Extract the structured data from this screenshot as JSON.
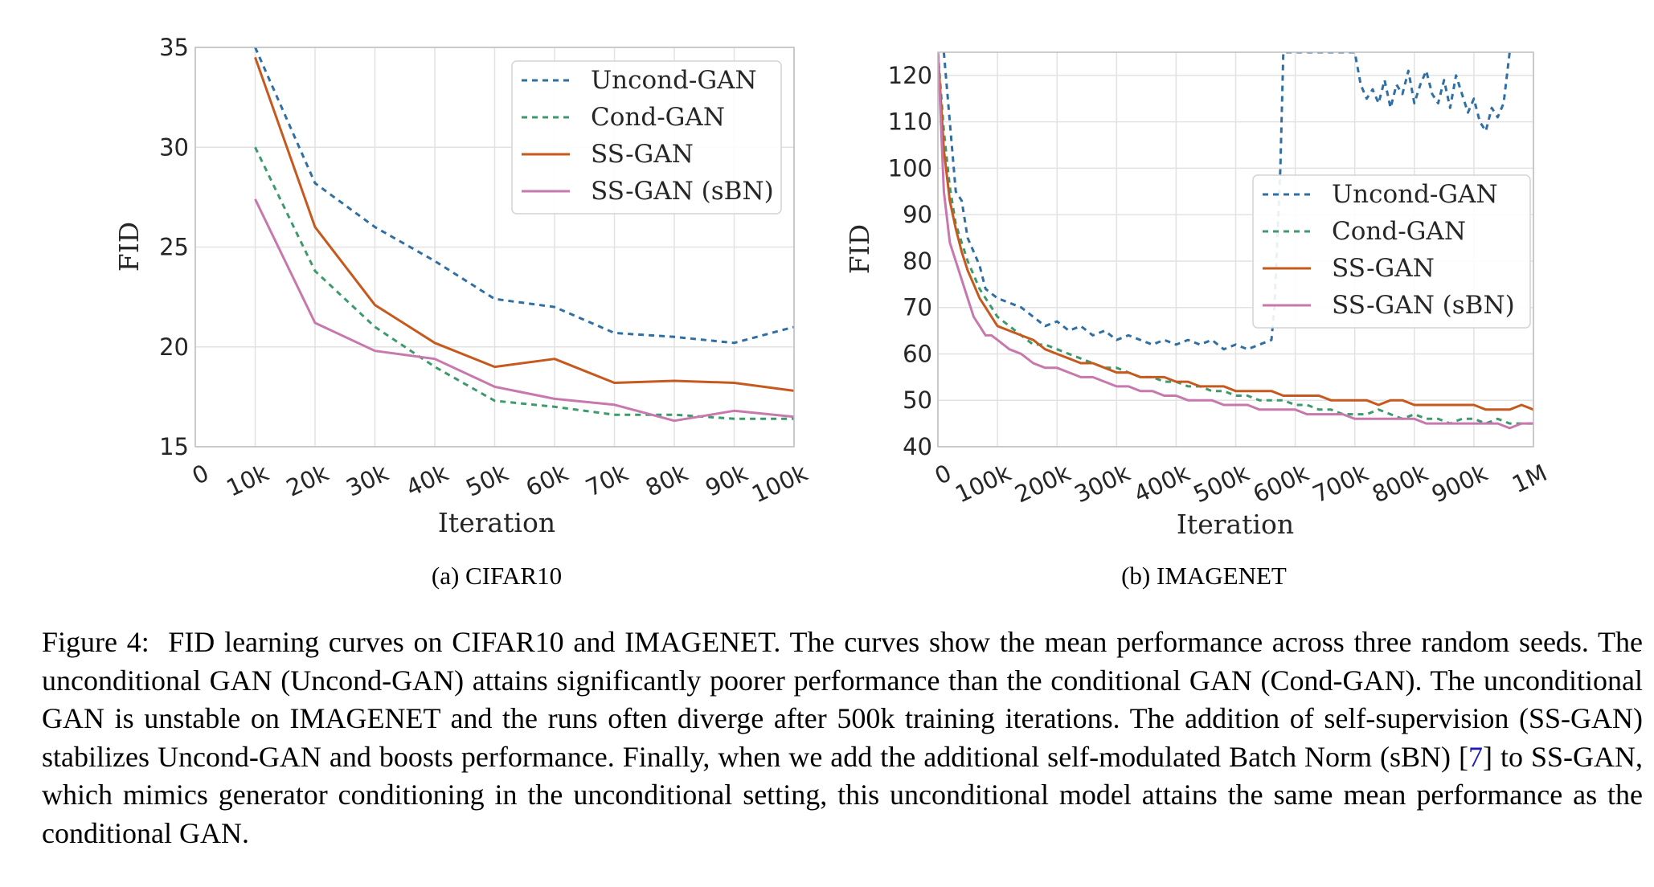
{
  "colors": {
    "uncond": "#2f6fa3",
    "cond": "#3d9a6c",
    "ssgan": "#c65a1e",
    "ssgan_sbn": "#c778ad",
    "grid": "#e2e2e2",
    "frame": "#bdbdbd"
  },
  "chart_data": [
    {
      "type": "line",
      "subcaption": "(a) CIFAR10",
      "xlabel": "Iteration",
      "ylabel": "FID",
      "xlim": [
        0,
        100000
      ],
      "ylim": [
        15,
        35
      ],
      "x_ticks": [
        0,
        10000,
        20000,
        30000,
        40000,
        50000,
        60000,
        70000,
        80000,
        90000,
        100000
      ],
      "x_tick_labels": [
        "0",
        "10k",
        "20k",
        "30k",
        "40k",
        "50k",
        "60k",
        "70k",
        "80k",
        "90k",
        "100k"
      ],
      "y_ticks": [
        15,
        20,
        25,
        30,
        35
      ],
      "y_tick_labels": [
        "15",
        "20",
        "25",
        "30",
        "35"
      ],
      "grid": true,
      "legend_position": "top-right",
      "x": [
        10000,
        20000,
        30000,
        40000,
        50000,
        60000,
        70000,
        80000,
        90000,
        100000
      ],
      "series": [
        {
          "name": "Uncond-GAN",
          "style": "dashed",
          "color_key": "uncond",
          "values": [
            35.0,
            28.2,
            26.0,
            24.3,
            22.4,
            22.0,
            20.7,
            20.5,
            20.2,
            21.0
          ]
        },
        {
          "name": "Cond-GAN",
          "style": "dashed",
          "color_key": "cond",
          "values": [
            30.0,
            23.8,
            21.0,
            19.0,
            17.3,
            17.0,
            16.6,
            16.6,
            16.4,
            16.4
          ]
        },
        {
          "name": "SS-GAN",
          "style": "solid",
          "color_key": "ssgan",
          "values": [
            34.5,
            26.0,
            22.1,
            20.2,
            19.0,
            19.4,
            18.2,
            18.3,
            18.2,
            17.8
          ]
        },
        {
          "name": "SS-GAN (sBN)",
          "style": "solid",
          "color_key": "ssgan_sbn",
          "values": [
            27.4,
            21.2,
            19.8,
            19.4,
            18.0,
            17.4,
            17.1,
            16.3,
            16.8,
            16.5
          ]
        }
      ]
    },
    {
      "type": "line",
      "subcaption": "(b) IMAGENET",
      "xlabel": "Iteration",
      "ylabel": "FID",
      "xlim": [
        0,
        1000000
      ],
      "ylim": [
        40,
        125
      ],
      "x_ticks": [
        0,
        100000,
        200000,
        300000,
        400000,
        500000,
        600000,
        700000,
        800000,
        900000,
        1000000
      ],
      "x_tick_labels": [
        "0",
        "100k",
        "200k",
        "300k",
        "400k",
        "500k",
        "600k",
        "700k",
        "800k",
        "900k",
        "1M"
      ],
      "y_ticks": [
        40,
        50,
        60,
        70,
        80,
        90,
        100,
        110,
        120
      ],
      "y_tick_labels": [
        "40",
        "50",
        "60",
        "70",
        "80",
        "90",
        "100",
        "110",
        "120"
      ],
      "grid": true,
      "legend_position": "center-right",
      "series": [
        {
          "name": "Uncond-GAN",
          "style": "dashed",
          "color_key": "uncond",
          "x": [
            10000,
            20000,
            30000,
            40000,
            50000,
            60000,
            70000,
            80000,
            90000,
            100000,
            120000,
            140000,
            160000,
            180000,
            200000,
            220000,
            240000,
            260000,
            280000,
            300000,
            320000,
            340000,
            360000,
            380000,
            400000,
            420000,
            440000,
            460000,
            480000,
            500000,
            520000,
            540000,
            560000,
            565000,
            570000,
            575000,
            580000,
            700000,
            710000,
            720000,
            730000,
            740000,
            750000,
            760000,
            770000,
            780000,
            790000,
            800000,
            810000,
            820000,
            830000,
            840000,
            850000,
            860000,
            870000,
            880000,
            890000,
            900000,
            910000,
            920000,
            930000,
            940000,
            950000,
            960000
          ],
          "values": [
            125,
            110,
            95,
            93,
            85,
            82,
            79,
            74,
            73,
            72,
            71,
            70,
            68,
            66,
            67,
            65,
            66,
            64,
            65,
            63,
            64,
            63,
            62,
            63,
            62,
            63,
            62,
            63,
            61,
            62,
            61,
            62,
            63,
            70,
            85,
            100,
            125,
            125,
            118,
            115,
            117,
            114,
            119,
            113,
            118,
            116,
            121,
            114,
            118,
            121,
            116,
            114,
            119,
            113,
            120,
            116,
            112,
            115,
            110,
            108,
            113,
            111,
            114,
            125
          ]
        },
        {
          "name": "Cond-GAN",
          "style": "dashed",
          "color_key": "cond",
          "x": [
            0,
            10000,
            20000,
            30000,
            40000,
            50000,
            60000,
            70000,
            80000,
            90000,
            100000,
            120000,
            140000,
            160000,
            180000,
            200000,
            220000,
            240000,
            260000,
            280000,
            300000,
            320000,
            340000,
            360000,
            380000,
            400000,
            420000,
            440000,
            460000,
            480000,
            500000,
            520000,
            540000,
            560000,
            580000,
            600000,
            620000,
            640000,
            660000,
            680000,
            700000,
            720000,
            740000,
            760000,
            780000,
            800000,
            820000,
            840000,
            860000,
            880000,
            900000,
            920000,
            940000,
            960000,
            980000,
            1000000
          ],
          "values": [
            125,
            108,
            96,
            88,
            84,
            80,
            77,
            74,
            72,
            70,
            68,
            66,
            64,
            62,
            62,
            61,
            60,
            59,
            58,
            57,
            57,
            56,
            55,
            55,
            54,
            54,
            53,
            53,
            52,
            52,
            51,
            51,
            50,
            50,
            50,
            49,
            49,
            48,
            48,
            47,
            47,
            47,
            48,
            47,
            46,
            47,
            46,
            46,
            45,
            46,
            46,
            45,
            46,
            45,
            45,
            45
          ]
        },
        {
          "name": "SS-GAN",
          "style": "solid",
          "color_key": "ssgan",
          "x": [
            0,
            10000,
            20000,
            30000,
            40000,
            50000,
            60000,
            70000,
            80000,
            90000,
            100000,
            120000,
            140000,
            160000,
            180000,
            200000,
            220000,
            240000,
            260000,
            280000,
            300000,
            320000,
            340000,
            360000,
            380000,
            400000,
            420000,
            440000,
            460000,
            480000,
            500000,
            520000,
            540000,
            560000,
            580000,
            600000,
            620000,
            640000,
            660000,
            680000,
            700000,
            720000,
            740000,
            760000,
            780000,
            800000,
            820000,
            840000,
            860000,
            880000,
            900000,
            920000,
            940000,
            960000,
            980000,
            1000000
          ],
          "values": [
            125,
            104,
            93,
            87,
            82,
            78,
            75,
            72,
            70,
            68,
            66,
            65,
            64,
            63,
            61,
            60,
            59,
            58,
            58,
            57,
            56,
            56,
            55,
            55,
            55,
            54,
            54,
            53,
            53,
            53,
            52,
            52,
            52,
            52,
            51,
            51,
            51,
            51,
            50,
            50,
            50,
            50,
            49,
            50,
            50,
            49,
            49,
            49,
            49,
            49,
            49,
            48,
            48,
            48,
            49,
            48
          ]
        },
        {
          "name": "SS-GAN (sBN)",
          "style": "solid",
          "color_key": "ssgan_sbn",
          "x": [
            0,
            10000,
            20000,
            30000,
            40000,
            50000,
            60000,
            70000,
            80000,
            90000,
            100000,
            120000,
            140000,
            160000,
            180000,
            200000,
            220000,
            240000,
            260000,
            280000,
            300000,
            320000,
            340000,
            360000,
            380000,
            400000,
            420000,
            440000,
            460000,
            480000,
            500000,
            520000,
            540000,
            560000,
            580000,
            600000,
            620000,
            640000,
            660000,
            680000,
            700000,
            720000,
            740000,
            760000,
            780000,
            800000,
            820000,
            840000,
            860000,
            880000,
            900000,
            920000,
            940000,
            960000,
            980000,
            1000000
          ],
          "values": [
            125,
            95,
            84,
            80,
            76,
            72,
            68,
            66,
            64,
            64,
            63,
            61,
            60,
            58,
            57,
            57,
            56,
            55,
            55,
            54,
            53,
            53,
            52,
            52,
            51,
            51,
            50,
            50,
            50,
            49,
            49,
            49,
            48,
            48,
            48,
            48,
            47,
            47,
            47,
            47,
            46,
            46,
            46,
            46,
            46,
            46,
            45,
            45,
            45,
            45,
            45,
            45,
            45,
            44,
            45,
            45
          ]
        }
      ]
    }
  ],
  "caption": {
    "label": "Figure 4:",
    "text_before_ref": "FID learning curves on CIFAR10 and IMAGENET. The curves show the mean performance across three random seeds. The unconditional GAN (Uncond-GAN) attains significantly poorer performance than the conditional GAN (Cond-GAN). The unconditional GAN is unstable on IMAGENET and the runs often diverge after 500k training iterations. The addition of self-supervision (SS-GAN) stabilizes Uncond-GAN and boosts performance. Finally, when we add the additional self-modulated Batch Norm (sBN) [",
    "ref": "7",
    "text_after_ref": "] to SS-GAN, which mimics generator conditioning in the unconditional setting, this unconditional model attains the same mean performance as the conditional GAN."
  }
}
